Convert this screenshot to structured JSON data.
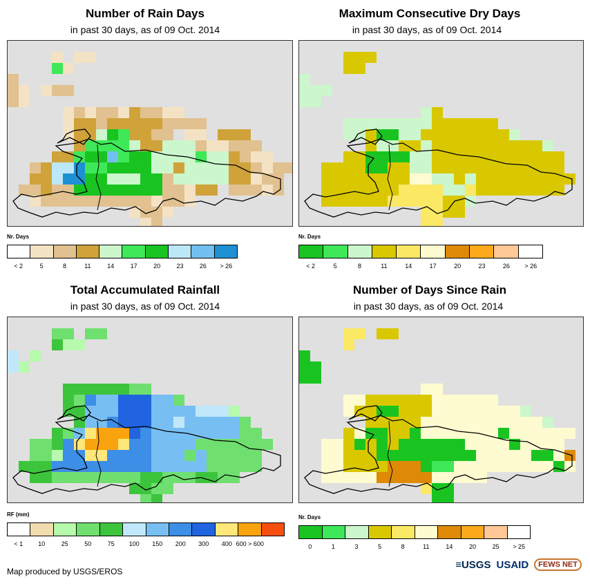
{
  "panels": [
    {
      "id": "rain-days",
      "title": "Number of Rain Days",
      "subtitle": "in past 30 days, as of 09 Oct. 2014",
      "legend_title": "Nr. Days",
      "legend_colors": [
        "#ffffff",
        "#f4e2c4",
        "#e1c18f",
        "#cfa33a",
        "#ccf6cc",
        "#3ee858",
        "#19c421",
        "#bce7f6",
        "#72c0f0",
        "#1e90d4"
      ],
      "legend_labels": [
        "< 2",
        "5",
        "8",
        "11",
        "14",
        "17",
        "20",
        "23",
        "26",
        "> 26"
      ],
      "palette": {
        "A": "#e1c18f",
        "B": "#cfa33a",
        "C": "#ccf6cc",
        "D": "#3ee858",
        "E": "#19c421",
        "F": "#bce7f6",
        "G": "#72c0f0",
        "H": "#1e90d4",
        "W": "#f4e2c4"
      }
    },
    {
      "id": "max-dry-days",
      "title": "Maximum Consecutive Dry Days",
      "subtitle": "in past 30 days, as of 09 Oct. 2014",
      "legend_title": "Nr. Days",
      "legend_colors": [
        "#19c421",
        "#3ee858",
        "#ccf6cc",
        "#d9c800",
        "#fbe865",
        "#fffbd0",
        "#de8a06",
        "#fbaa1c",
        "#ffc896",
        "#ffffff"
      ],
      "legend_labels": [
        "< 2",
        "5",
        "8",
        "11",
        "14",
        "17",
        "20",
        "23",
        "26",
        "> 26"
      ],
      "palette": {
        "A": "#d9c800",
        "B": "#fbe865",
        "C": "#ccf6cc",
        "D": "#3ee858",
        "E": "#19c421",
        "F": "#fffbd0",
        "G": "#de8a06",
        "H": "#fbaa1c",
        "W": "#ffc896"
      }
    },
    {
      "id": "total-rainfall",
      "title": "Total Accumulated Rainfall",
      "subtitle": "in past 30 days, as of 09 Oct. 2014",
      "legend_title": "RF (mm)",
      "legend_colors": [
        "#ffffff",
        "#f1dcb0",
        "#b7f9ad",
        "#6fdf6f",
        "#3dc43d",
        "#c0e8fa",
        "#77bff3",
        "#3d8ee6",
        "#2064e0",
        "#ffe77a",
        "#f9a30e",
        "#f74e10"
      ],
      "legend_labels": [
        "< 1",
        "10",
        "25",
        "50",
        "75",
        "100",
        "150",
        "200",
        "300",
        "400",
        "600 > 600"
      ],
      "palette": {
        "A": "#6fdf6f",
        "B": "#3dc43d",
        "C": "#b7f9ad",
        "D": "#c0e8fa",
        "E": "#77bff3",
        "F": "#3d8ee6",
        "G": "#2064e0",
        "H": "#ffe77a",
        "W": "#f9a30e"
      }
    },
    {
      "id": "days-since-rain",
      "title": "Number of Days Since Rain",
      "subtitle": "in past 30 days, as of 09 Oct. 2014",
      "legend_title": "Nr. Days",
      "legend_colors": [
        "#19c421",
        "#3ee858",
        "#ccf6cc",
        "#d9c800",
        "#fbe865",
        "#fffbd0",
        "#de8a06",
        "#fbaa1c",
        "#ffc896",
        "#ffffff"
      ],
      "legend_labels": [
        "0",
        "1",
        "3",
        "5",
        "8",
        "11",
        "14",
        "20",
        "25",
        "> 25"
      ],
      "palette": {
        "A": "#d9c800",
        "B": "#fbe865",
        "C": "#ccf6cc",
        "D": "#3ee858",
        "E": "#19c421",
        "F": "#fffbd0",
        "G": "#de8a06",
        "H": "#fbaa1c",
        "W": "#ffc896"
      }
    }
  ],
  "footer": {
    "credit": "Map produced by USGS/EROS",
    "logos": [
      "≡USGS",
      "USAID",
      "FEWS NET"
    ]
  }
}
